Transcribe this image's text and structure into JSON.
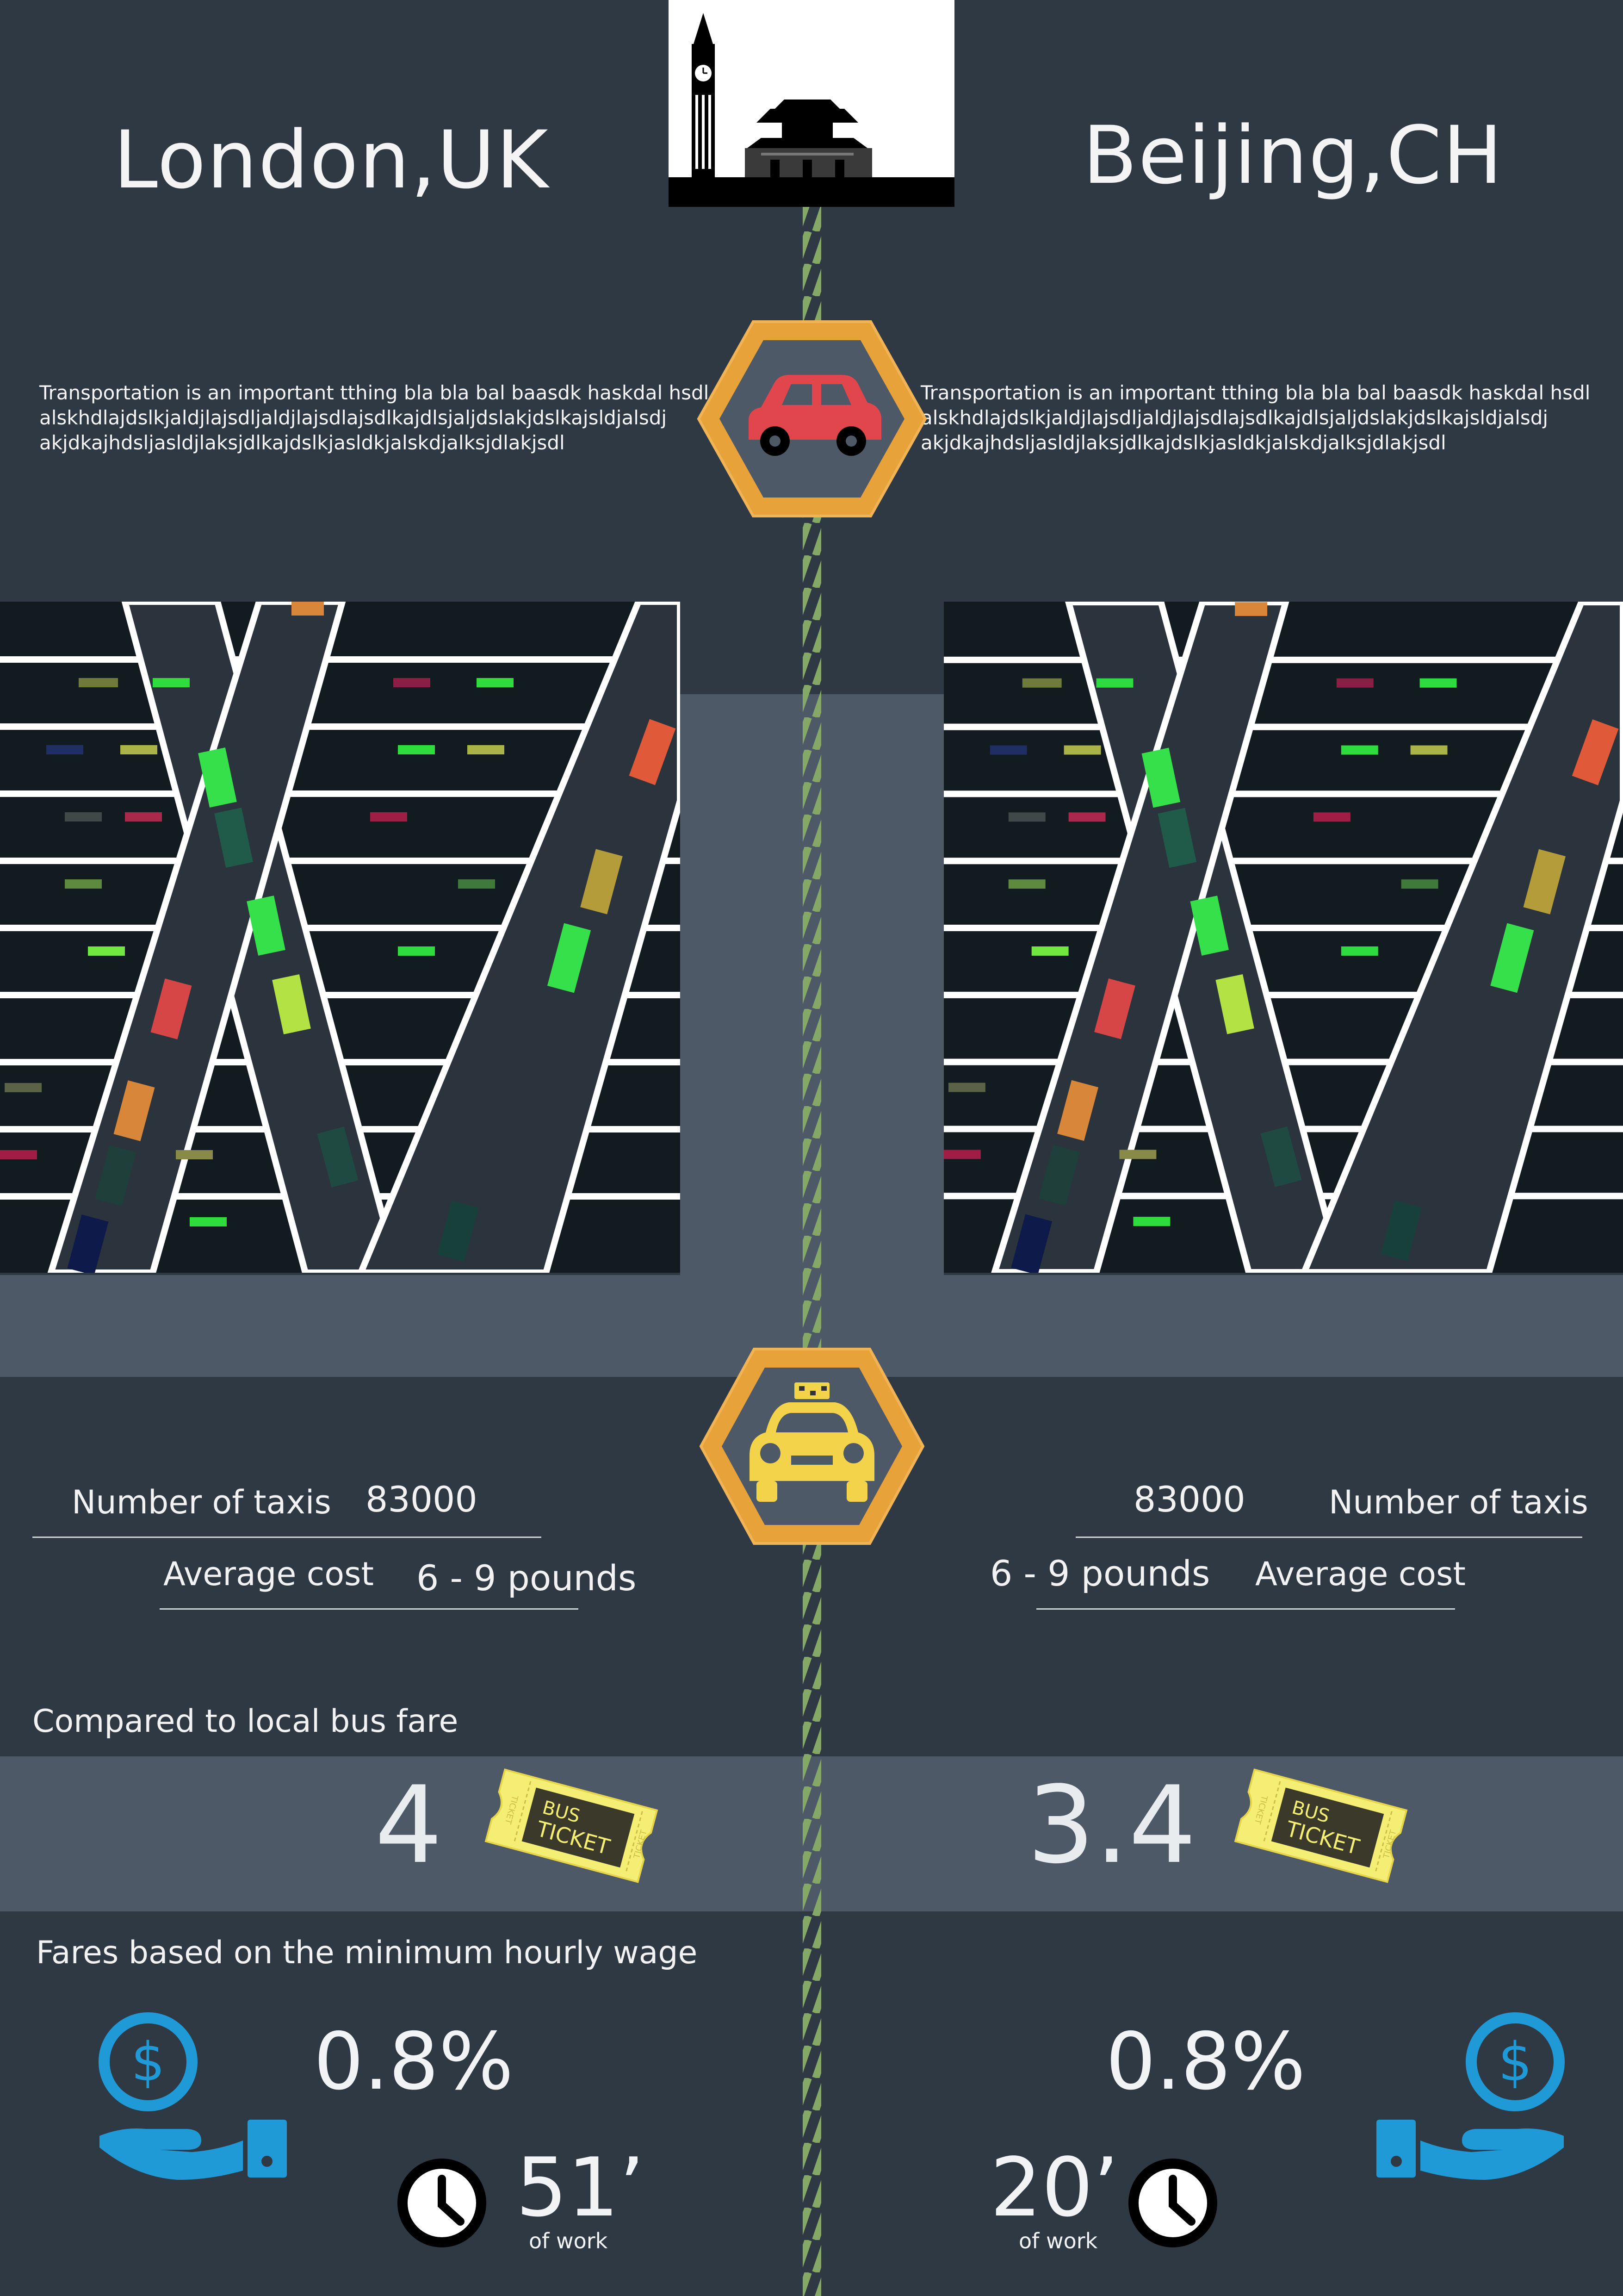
{
  "left": {
    "city": "London,UK",
    "paragraph": [
      "Transportation is an important tthing bla bla bal baasdk haskdal hsdl",
      "alskhdlajdslkjaldjlajsdljaldjlajsdlajsdlkajdlsjaljdslakjdslkajsldjalsdj",
      "akjdkajhdsljasldjlaksjdlkajdslkjasldkjalskdjalksjdlakjsdl"
    ],
    "taxis_label": "Number of taxis",
    "taxis_value": "83000",
    "cost_label": "Average cost",
    "cost_value": "6 - 9 pounds",
    "bus_ratio": "4",
    "wage_pct": "0.8%",
    "minutes": "51’",
    "of_work": "of work"
  },
  "right": {
    "city": "Beijing,CH",
    "paragraph": [
      "Transportation is an important tthing bla bla bal baasdk haskdal hsdl",
      "alskhdlajdslkjaldjlajsdljaldjlajsdlajsdlkajdlsjaljdslakjdslkajsldjalsdj",
      "akjdkajhdsljasldjlaksjdlkajdslkjasldkjalskdjalksjdlakjsdl"
    ],
    "taxis_label": "Number of taxis",
    "taxis_value": "83000",
    "cost_label": "Average cost",
    "cost_value": "6 - 9 pounds",
    "bus_ratio": "3.4",
    "wage_pct": "0.8%",
    "minutes": "20’",
    "of_work": "of work"
  },
  "sections": {
    "bus_title": "Compared to local bus fare",
    "wage_title": "Fares based on the minimum hourly wage"
  },
  "ticket": {
    "line1": "BUS",
    "line2": "TICKET",
    "side": "TICKET"
  },
  "icons": {
    "skyline": "big-ben-and-tiananmen-skyline",
    "car": "red-car-icon",
    "taxi": "yellow-taxi-icon",
    "road": "highway-traffic-illustration",
    "ticket": "bus-ticket-icon",
    "money": "dollar-hand-icon",
    "clock": "clock-icon"
  },
  "colors": {
    "background": "#2f3944",
    "band": "#4d5966",
    "rope": "#86a866",
    "hex_orange": "#e8a23a",
    "car_red": "#e0464c",
    "taxi_yellow": "#f3d34a",
    "money_blue": "#1f9ad7",
    "ticket_yellow": "#f4ee74"
  }
}
